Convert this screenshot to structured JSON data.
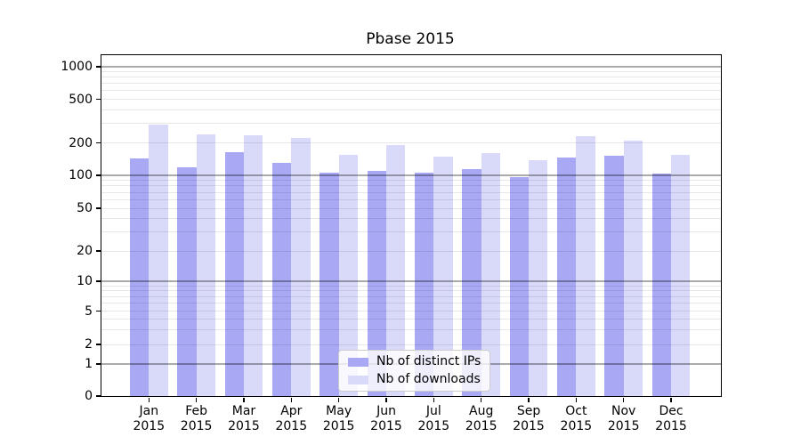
{
  "chart_data": {
    "type": "bar",
    "title": "Pbase 2015",
    "categories": [
      "Jan",
      "Feb",
      "Mar",
      "Apr",
      "May",
      "Jun",
      "Jul",
      "Aug",
      "Sep",
      "Oct",
      "Nov",
      "Dec"
    ],
    "category_year": "2015",
    "series": [
      {
        "name": "Nb of distinct IPs",
        "color": "#a8a8f5",
        "values": [
          144,
          118,
          163,
          131,
          106,
          110,
          105,
          114,
          96,
          147,
          153,
          104
        ]
      },
      {
        "name": "Nb of downloads",
        "color": "#d9d9f9",
        "values": [
          292,
          238,
          234,
          220,
          156,
          189,
          149,
          161,
          138,
          231,
          210,
          154
        ]
      }
    ],
    "xlabel": "",
    "ylabel": "",
    "yscale": "log",
    "ylim": [
      0,
      1000
    ],
    "y_tick_labels": [
      "0",
      "1",
      "2",
      "5",
      "10",
      "20",
      "50",
      "100",
      "200",
      "500",
      "1000"
    ],
    "y_tick_values": [
      0,
      1,
      2,
      5,
      10,
      20,
      50,
      100,
      200,
      500,
      1000
    ],
    "y_major_gridlines": [
      1,
      10,
      100,
      1000
    ],
    "y_minor_gridlines": [
      2,
      3,
      4,
      5,
      6,
      7,
      8,
      9,
      20,
      30,
      40,
      50,
      60,
      70,
      80,
      90,
      200,
      300,
      400,
      500,
      600,
      700,
      800,
      900
    ],
    "grid": true,
    "legend_position": "lower center"
  }
}
